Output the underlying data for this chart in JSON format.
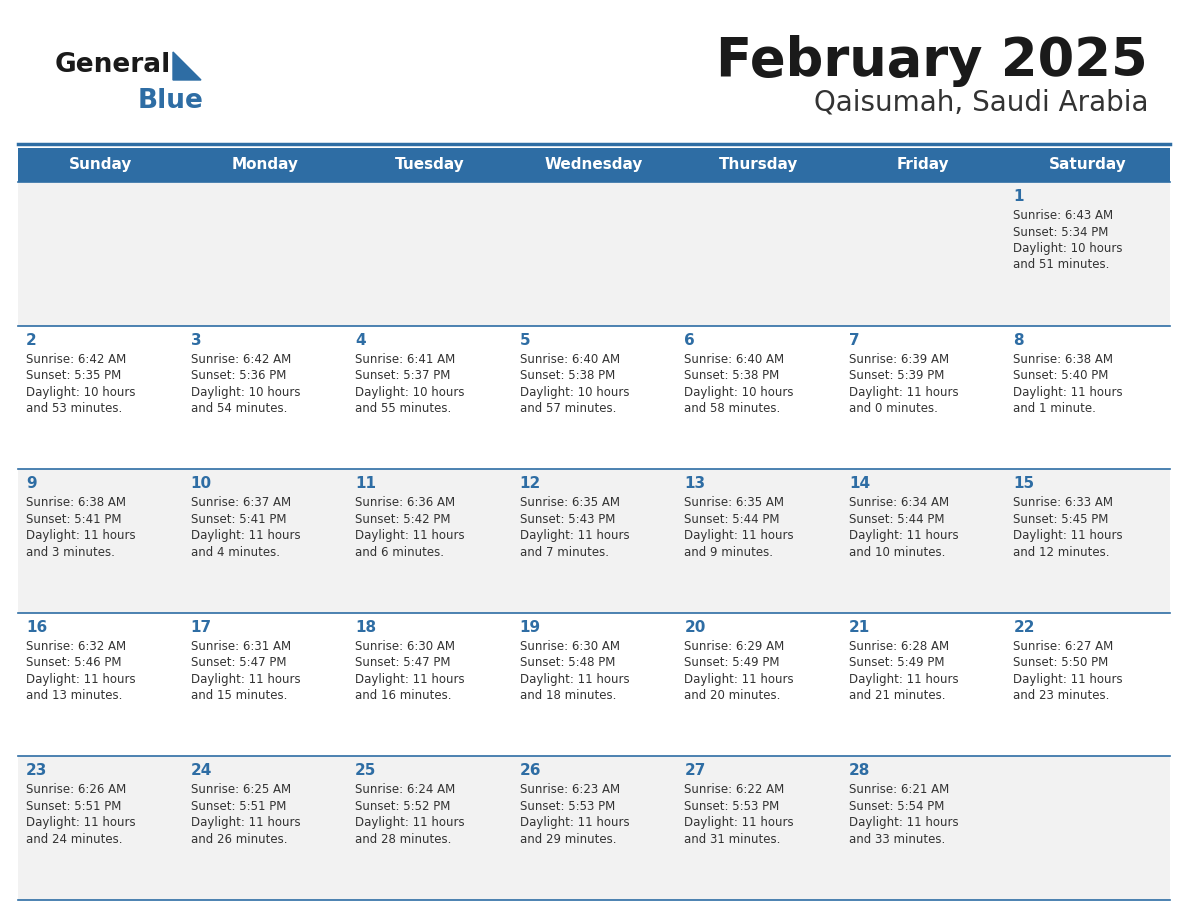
{
  "title": "February 2025",
  "subtitle": "Qaisumah, Saudi Arabia",
  "header_color": "#2E6DA4",
  "header_text_color": "#FFFFFF",
  "cell_bg_odd": "#F2F2F2",
  "cell_bg_even": "#FFFFFF",
  "day_number_color": "#2E6DA4",
  "text_color": "#333333",
  "border_color": "#2E6DA4",
  "days_of_week": [
    "Sunday",
    "Monday",
    "Tuesday",
    "Wednesday",
    "Thursday",
    "Friday",
    "Saturday"
  ],
  "calendar_data": [
    [
      null,
      null,
      null,
      null,
      null,
      null,
      {
        "day": "1",
        "sunrise": "6:43 AM",
        "sunset": "5:34 PM",
        "daylight": "10 hours",
        "daylight2": "and 51 minutes."
      }
    ],
    [
      {
        "day": "2",
        "sunrise": "6:42 AM",
        "sunset": "5:35 PM",
        "daylight": "10 hours",
        "daylight2": "and 53 minutes."
      },
      {
        "day": "3",
        "sunrise": "6:42 AM",
        "sunset": "5:36 PM",
        "daylight": "10 hours",
        "daylight2": "and 54 minutes."
      },
      {
        "day": "4",
        "sunrise": "6:41 AM",
        "sunset": "5:37 PM",
        "daylight": "10 hours",
        "daylight2": "and 55 minutes."
      },
      {
        "day": "5",
        "sunrise": "6:40 AM",
        "sunset": "5:38 PM",
        "daylight": "10 hours",
        "daylight2": "and 57 minutes."
      },
      {
        "day": "6",
        "sunrise": "6:40 AM",
        "sunset": "5:38 PM",
        "daylight": "10 hours",
        "daylight2": "and 58 minutes."
      },
      {
        "day": "7",
        "sunrise": "6:39 AM",
        "sunset": "5:39 PM",
        "daylight": "11 hours",
        "daylight2": "and 0 minutes."
      },
      {
        "day": "8",
        "sunrise": "6:38 AM",
        "sunset": "5:40 PM",
        "daylight": "11 hours",
        "daylight2": "and 1 minute."
      }
    ],
    [
      {
        "day": "9",
        "sunrise": "6:38 AM",
        "sunset": "5:41 PM",
        "daylight": "11 hours",
        "daylight2": "and 3 minutes."
      },
      {
        "day": "10",
        "sunrise": "6:37 AM",
        "sunset": "5:41 PM",
        "daylight": "11 hours",
        "daylight2": "and 4 minutes."
      },
      {
        "day": "11",
        "sunrise": "6:36 AM",
        "sunset": "5:42 PM",
        "daylight": "11 hours",
        "daylight2": "and 6 minutes."
      },
      {
        "day": "12",
        "sunrise": "6:35 AM",
        "sunset": "5:43 PM",
        "daylight": "11 hours",
        "daylight2": "and 7 minutes."
      },
      {
        "day": "13",
        "sunrise": "6:35 AM",
        "sunset": "5:44 PM",
        "daylight": "11 hours",
        "daylight2": "and 9 minutes."
      },
      {
        "day": "14",
        "sunrise": "6:34 AM",
        "sunset": "5:44 PM",
        "daylight": "11 hours",
        "daylight2": "and 10 minutes."
      },
      {
        "day": "15",
        "sunrise": "6:33 AM",
        "sunset": "5:45 PM",
        "daylight": "11 hours",
        "daylight2": "and 12 minutes."
      }
    ],
    [
      {
        "day": "16",
        "sunrise": "6:32 AM",
        "sunset": "5:46 PM",
        "daylight": "11 hours",
        "daylight2": "and 13 minutes."
      },
      {
        "day": "17",
        "sunrise": "6:31 AM",
        "sunset": "5:47 PM",
        "daylight": "11 hours",
        "daylight2": "and 15 minutes."
      },
      {
        "day": "18",
        "sunrise": "6:30 AM",
        "sunset": "5:47 PM",
        "daylight": "11 hours",
        "daylight2": "and 16 minutes."
      },
      {
        "day": "19",
        "sunrise": "6:30 AM",
        "sunset": "5:48 PM",
        "daylight": "11 hours",
        "daylight2": "and 18 minutes."
      },
      {
        "day": "20",
        "sunrise": "6:29 AM",
        "sunset": "5:49 PM",
        "daylight": "11 hours",
        "daylight2": "and 20 minutes."
      },
      {
        "day": "21",
        "sunrise": "6:28 AM",
        "sunset": "5:49 PM",
        "daylight": "11 hours",
        "daylight2": "and 21 minutes."
      },
      {
        "day": "22",
        "sunrise": "6:27 AM",
        "sunset": "5:50 PM",
        "daylight": "11 hours",
        "daylight2": "and 23 minutes."
      }
    ],
    [
      {
        "day": "23",
        "sunrise": "6:26 AM",
        "sunset": "5:51 PM",
        "daylight": "11 hours",
        "daylight2": "and 24 minutes."
      },
      {
        "day": "24",
        "sunrise": "6:25 AM",
        "sunset": "5:51 PM",
        "daylight": "11 hours",
        "daylight2": "and 26 minutes."
      },
      {
        "day": "25",
        "sunrise": "6:24 AM",
        "sunset": "5:52 PM",
        "daylight": "11 hours",
        "daylight2": "and 28 minutes."
      },
      {
        "day": "26",
        "sunrise": "6:23 AM",
        "sunset": "5:53 PM",
        "daylight": "11 hours",
        "daylight2": "and 29 minutes."
      },
      {
        "day": "27",
        "sunrise": "6:22 AM",
        "sunset": "5:53 PM",
        "daylight": "11 hours",
        "daylight2": "and 31 minutes."
      },
      {
        "day": "28",
        "sunrise": "6:21 AM",
        "sunset": "5:54 PM",
        "daylight": "11 hours",
        "daylight2": "and 33 minutes."
      },
      null
    ]
  ],
  "fig_width": 11.88,
  "fig_height": 9.18,
  "dpi": 100
}
